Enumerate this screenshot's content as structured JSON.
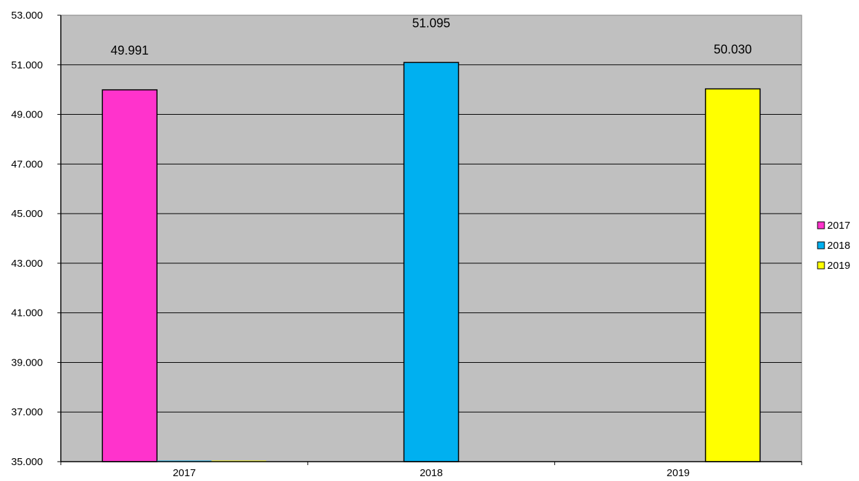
{
  "chart_data": {
    "type": "bar",
    "categories": [
      "2017",
      "2018",
      "2019"
    ],
    "series": [
      {
        "name": "2017",
        "color": "#FF33CC",
        "values": [
          49991,
          null,
          null
        ]
      },
      {
        "name": "2018",
        "color": "#00B0F0",
        "values": [
          35000,
          51095,
          null
        ]
      },
      {
        "name": "2019",
        "color": "#FFFF00",
        "values": [
          35000,
          null,
          50030
        ]
      }
    ],
    "data_labels": [
      "49.991",
      "51.095",
      "50.030"
    ],
    "yticks": [
      "35.000",
      "37.000",
      "39.000",
      "41.000",
      "43.000",
      "45.000",
      "47.000",
      "49.000",
      "51.000",
      "53.000"
    ],
    "ylim": [
      35000,
      53000
    ],
    "ystep": 2000,
    "grid": true,
    "legend_position": "right",
    "plot_background": "#C0C0C0"
  }
}
